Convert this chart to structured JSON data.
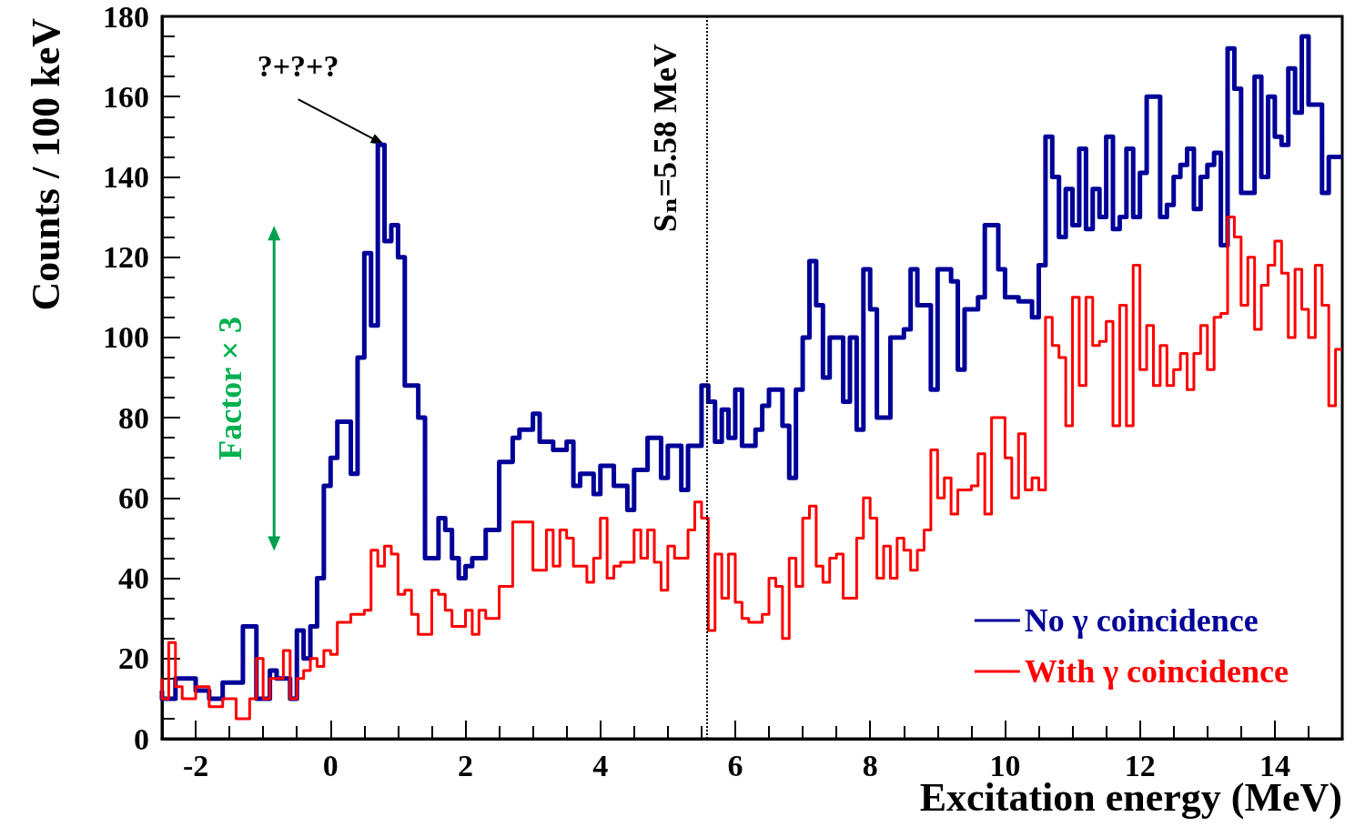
{
  "chart_data": {
    "type": "step",
    "xlabel": "Excitation energy (MeV)",
    "ylabel": "Counts / 100 keV",
    "xlim": [
      -2.5,
      15
    ],
    "xticks": [
      -2,
      0,
      2,
      4,
      6,
      8,
      10,
      12,
      14
    ],
    "ylim": [
      0,
      180
    ],
    "yticks": [
      0,
      20,
      40,
      60,
      80,
      100,
      120,
      140,
      160,
      180
    ],
    "grid": false,
    "legend": "bottom right",
    "line_style": "solid",
    "marker": "none",
    "ref_lines": [
      {
        "axis": "x",
        "value": 5.58,
        "label": "Sₙ=5.58 MeV",
        "color": "#000000",
        "line_style": "dotted"
      }
    ],
    "annotations": [
      {
        "text": "?+?+?",
        "x": 0.8,
        "y": 148
      },
      "Factor × 3"
    ],
    "series": [
      {
        "name": "No γ coincidence",
        "color": "#000099",
        "x": [
          -2.5,
          -2.3,
          -2.0,
          -1.8,
          -1.6,
          -1.3,
          -1.1,
          -0.9,
          -0.8,
          -0.6,
          -0.5,
          -0.4,
          -0.3,
          -0.2,
          -0.1,
          0,
          0.1,
          0.3,
          0.4,
          0.5,
          0.6,
          0.7,
          0.8,
          0.9,
          1.0,
          1.1,
          1.3,
          1.4,
          1.6,
          1.7,
          1.8,
          1.9,
          2.0,
          2.1,
          2.3,
          2.5,
          2.7,
          2.8,
          3.0,
          3.1,
          3.3,
          3.5,
          3.6,
          3.7,
          3.9,
          4.0,
          4.2,
          4.4,
          4.5,
          4.7,
          4.9,
          5.0,
          5.2,
          5.3,
          5.5,
          5.6,
          5.7,
          5.8,
          5.9,
          6.0,
          6.1,
          6.3,
          6.4,
          6.5,
          6.7,
          6.8,
          6.9,
          7.0,
          7.1,
          7.2,
          7.3,
          7.4,
          7.6,
          7.7,
          7.8,
          7.9,
          8.0,
          8.1,
          8.3,
          8.4,
          8.5,
          8.6,
          8.7,
          8.9,
          9.0,
          9.2,
          9.3,
          9.4,
          9.6,
          9.7,
          9.9,
          10.0,
          10.2,
          10.4,
          10.5,
          10.6,
          10.7,
          10.8,
          10.9,
          11.0,
          11.1,
          11.2,
          11.3,
          11.4,
          11.5,
          11.6,
          11.7,
          11.8,
          11.9,
          12.0,
          12.1,
          12.3,
          12.4,
          12.5,
          12.6,
          12.7,
          12.8,
          12.9,
          13.0,
          13.1,
          13.2,
          13.3,
          13.4,
          13.5,
          13.6,
          13.7,
          13.8,
          13.9,
          14.0,
          14.1,
          14.2,
          14.3,
          14.4,
          14.5,
          14.6,
          14.7,
          14.8,
          14.9,
          15.0
        ],
        "values": [
          12,
          10,
          15,
          12,
          10,
          14,
          28,
          10,
          17,
          15,
          10,
          27,
          20,
          28,
          40,
          63,
          70,
          79,
          66,
          95,
          121,
          103,
          148,
          124,
          128,
          120,
          88,
          80,
          45,
          55,
          52,
          45,
          40,
          43,
          45,
          52,
          69,
          75,
          77,
          81,
          74,
          72,
          74,
          63,
          66,
          61,
          68,
          63,
          57,
          67,
          75,
          65,
          73,
          62,
          73,
          88,
          84,
          74,
          82,
          75,
          87,
          73,
          77,
          83,
          87,
          78,
          65,
          87,
          100,
          119,
          108,
          90,
          100,
          84,
          100,
          77,
          117,
          107,
          80,
          100,
          100,
          102,
          117,
          108,
          87,
          117,
          114,
          92,
          107,
          110,
          128,
          117,
          110,
          109,
          105,
          118,
          150,
          140,
          125,
          137,
          128,
          147,
          127,
          137,
          130,
          150,
          127,
          130,
          147,
          130,
          141,
          160,
          130,
          133,
          140,
          143,
          147,
          132,
          140,
          143,
          146,
          123,
          172,
          162,
          136,
          136,
          165,
          140,
          160,
          150,
          148,
          167,
          156,
          175,
          158,
          158,
          136,
          145,
          145
        ]
      },
      {
        "name": "With γ coincidence",
        "color": "#ff0000",
        "x": [
          -2.5,
          -2.4,
          -2.3,
          -2.2,
          -2.0,
          -1.8,
          -1.6,
          -1.4,
          -1.2,
          -1.1,
          -1.0,
          -0.9,
          -0.7,
          -0.6,
          -0.5,
          -0.4,
          -0.3,
          -0.2,
          -0.1,
          0,
          0.1,
          0.3,
          0.5,
          0.6,
          0.7,
          0.8,
          0.9,
          1.0,
          1.1,
          1.2,
          1.3,
          1.5,
          1.6,
          1.7,
          1.8,
          2.0,
          2.1,
          2.2,
          2.3,
          2.5,
          2.7,
          2.9,
          3.0,
          3.2,
          3.3,
          3.4,
          3.5,
          3.6,
          3.8,
          3.9,
          4.0,
          4.1,
          4.2,
          4.3,
          4.5,
          4.6,
          4.7,
          4.8,
          4.9,
          5.0,
          5.1,
          5.3,
          5.4,
          5.5,
          5.6,
          5.7,
          5.8,
          5.9,
          6.0,
          6.1,
          6.2,
          6.4,
          6.5,
          6.6,
          6.7,
          6.8,
          6.9,
          7.0,
          7.1,
          7.2,
          7.3,
          7.4,
          7.5,
          7.6,
          7.7,
          7.8,
          7.9,
          8.0,
          8.1,
          8.2,
          8.3,
          8.4,
          8.5,
          8.6,
          8.7,
          8.8,
          8.9,
          9.0,
          9.1,
          9.2,
          9.3,
          9.4,
          9.5,
          9.6,
          9.7,
          9.8,
          10.0,
          10.1,
          10.2,
          10.3,
          10.4,
          10.5,
          10.6,
          10.7,
          10.8,
          10.9,
          11.0,
          11.1,
          11.2,
          11.3,
          11.4,
          11.5,
          11.6,
          11.7,
          11.8,
          11.9,
          12.0,
          12.1,
          12.2,
          12.3,
          12.4,
          12.5,
          12.6,
          12.7,
          12.8,
          12.9,
          13.0,
          13.1,
          13.2,
          13.3,
          13.4,
          13.5,
          13.6,
          13.7,
          13.8,
          13.9,
          14.0,
          14.1,
          14.2,
          14.3,
          14.4,
          14.5,
          14.6,
          14.7,
          14.8,
          14.9,
          15.0
        ],
        "values": [
          15,
          10,
          24,
          13,
          10,
          13,
          8,
          10,
          5,
          10,
          20,
          10,
          15,
          22,
          10,
          15,
          17,
          20,
          18,
          22,
          21,
          29,
          31,
          32,
          47,
          43,
          48,
          46,
          36,
          37,
          31,
          26,
          37,
          36,
          32,
          28,
          32,
          26,
          32,
          30,
          38,
          54,
          54,
          42,
          52,
          43,
          52,
          50,
          43,
          39,
          45,
          55,
          40,
          43,
          44,
          52,
          45,
          52,
          44,
          37,
          48,
          45,
          52,
          59,
          55,
          27,
          46,
          35,
          46,
          34,
          30,
          29,
          31,
          40,
          38,
          25,
          45,
          38,
          55,
          58,
          43,
          39,
          45,
          46,
          35,
          35,
          50,
          60,
          55,
          40,
          48,
          40,
          50,
          47,
          42,
          47,
          52,
          72,
          60,
          65,
          56,
          62,
          62,
          63,
          71,
          56,
          80,
          70,
          60,
          76,
          62,
          65,
          62,
          105,
          98,
          95,
          78,
          110,
          88,
          110,
          98,
          99,
          104,
          78,
          108,
          78,
          118,
          92,
          103,
          88,
          98,
          88,
          92,
          96,
          87,
          96,
          103,
          92,
          105,
          106,
          130,
          125,
          108,
          120,
          102,
          113,
          118,
          124,
          116,
          100,
          117,
          107,
          100,
          118,
          108,
          83,
          97
        ]
      }
    ]
  }
}
